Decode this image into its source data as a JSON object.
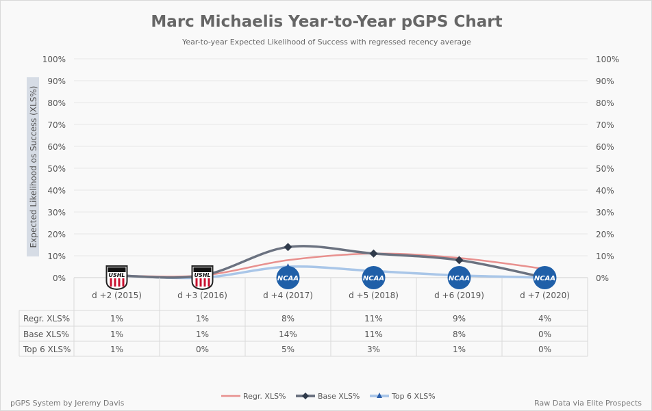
{
  "chart_data": {
    "type": "line",
    "title": "Marc Michaelis Year-to-Year pGPS Chart",
    "subtitle": "Year-to-year Expected Likelihood of Success with regressed recency average",
    "ylabel": "Expected Likelihood os Success (XLS%)",
    "ylim": [
      0,
      100
    ],
    "yticks": [
      "0%",
      "10%",
      "20%",
      "30%",
      "40%",
      "50%",
      "60%",
      "70%",
      "80%",
      "90%",
      "100%"
    ],
    "categories": [
      "d +2 (2015)",
      "d +3 (2016)",
      "d +4 (2017)",
      "d +5 (2018)",
      "d +6 (2019)",
      "d +7 (2020)"
    ],
    "leagues": [
      "USHL",
      "USHL",
      "NCAA",
      "NCAA",
      "NCAA",
      "NCAA"
    ],
    "series": [
      {
        "name": "Regr. XLS%",
        "values": [
          1,
          1,
          8,
          11,
          9,
          4
        ],
        "color": "#e8908e",
        "marker": "none"
      },
      {
        "name": "Base XLS%",
        "values": [
          1,
          1,
          14,
          11,
          8,
          0
        ],
        "color": "#6b7280",
        "marker": "diamond"
      },
      {
        "name": "Top 6 XLS%",
        "values": [
          1,
          0,
          5,
          3,
          1,
          0
        ],
        "color": "#a9c6e8",
        "marker": "triangle"
      }
    ],
    "legend_position": "bottom",
    "footer_left": "pGPS System by Jeremy Davis",
    "footer_right": "Raw Data via Elite Prospects"
  }
}
